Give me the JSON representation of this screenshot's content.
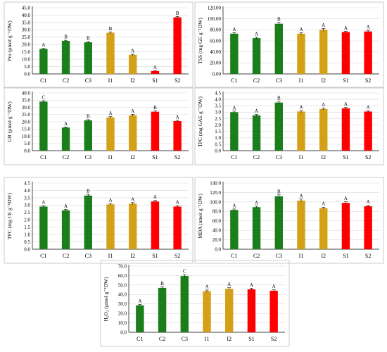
{
  "colors": {
    "C": "#1a7f1a",
    "I": "#d4a017",
    "S": "#ff0000"
  },
  "chart_data": [
    {
      "type": "bar",
      "categories": [
        "C1",
        "C2",
        "C3",
        "I1",
        "I2",
        "S1",
        "S2"
      ],
      "values": [
        17,
        22.5,
        21.5,
        28,
        13,
        2,
        38.5
      ],
      "errors": [
        0.4,
        0.4,
        0.5,
        0.6,
        0.4,
        0.2,
        0.6
      ],
      "letters": [
        "A",
        "B",
        "B",
        "B",
        "A",
        "A",
        "B"
      ],
      "ylabel": "Pro (µmol g⁻¹DW)",
      "ylim": [
        0,
        45
      ],
      "ystep": 5,
      "decimals": 1,
      "grid": true
    },
    {
      "type": "bar",
      "categories": [
        "C1",
        "C2",
        "C3",
        "I1",
        "I2",
        "S1",
        "S2"
      ],
      "values": [
        73,
        65,
        91,
        73,
        80,
        76,
        77
      ],
      "errors": [
        2,
        1.5,
        2.5,
        2,
        2.5,
        1.5,
        2
      ],
      "letters": [
        "A",
        "A",
        "B",
        "A",
        "A",
        "A",
        "A"
      ],
      "ylabel": "TSS (mg GE g⁻¹DW)",
      "ylim": [
        0,
        120
      ],
      "ystep": 20,
      "decimals": 2,
      "grid": true
    },
    {
      "type": "bar",
      "categories": [
        "C1",
        "C2",
        "C3",
        "I1",
        "I2",
        "S1",
        "S2"
      ],
      "values": [
        34,
        16,
        21,
        23,
        24.5,
        27,
        20.5
      ],
      "errors": [
        0.6,
        0.4,
        0.5,
        0.6,
        0.7,
        0.6,
        0.5
      ],
      "letters": [
        "C",
        "A",
        "B",
        "A",
        "A",
        "B",
        "A"
      ],
      "ylabel": "GB (µmol g⁻¹DW)",
      "ylim": [
        0,
        40
      ],
      "ystep": 5,
      "decimals": 1,
      "grid": true
    },
    {
      "type": "bar",
      "categories": [
        "C1",
        "C2",
        "C3",
        "I1",
        "I2",
        "S1",
        "S2"
      ],
      "values": [
        3.0,
        2.75,
        3.75,
        3.05,
        3.25,
        3.3,
        3.05
      ],
      "errors": [
        0.08,
        0.07,
        0.1,
        0.08,
        0.08,
        0.08,
        0.07
      ],
      "letters": [
        "A",
        "A",
        "B",
        "A",
        "A",
        "A",
        "A"
      ],
      "ylabel": "TPC (mg GAE g⁻¹DW)",
      "ylim": [
        0,
        4.5
      ],
      "ystep": 0.5,
      "decimals": 1,
      "grid": true
    },
    {
      "type": "bar",
      "categories": [
        "C1",
        "C2",
        "C3",
        "I1",
        "I2",
        "S1",
        "S2"
      ],
      "values": [
        2.9,
        2.65,
        3.65,
        3.05,
        3.1,
        3.25,
        2.9
      ],
      "errors": [
        0.06,
        0.06,
        0.08,
        0.07,
        0.07,
        0.07,
        0.06
      ],
      "letters": [
        "A",
        "A",
        "B",
        "A",
        "A",
        "A",
        "A"
      ],
      "ylabel": "TFC (mg CE g⁻¹DW)",
      "ylim": [
        0,
        4.5
      ],
      "ystep": 0.5,
      "decimals": 1,
      "grid": true
    },
    {
      "type": "bar",
      "categories": [
        "C1",
        "C2",
        "C3",
        "I1",
        "I2",
        "S1",
        "S2"
      ],
      "values": [
        83,
        89,
        112,
        103,
        87,
        98,
        91
      ],
      "errors": [
        2,
        2,
        3,
        3,
        2,
        2.5,
        2
      ],
      "letters": [
        "A",
        "A",
        "B",
        "A",
        "A",
        "A",
        "A"
      ],
      "ylabel": "MDA (nmol g⁻¹DW)",
      "ylim": [
        0,
        140
      ],
      "ystep": 20,
      "decimals": 1,
      "grid": true
    },
    {
      "type": "bar",
      "categories": [
        "C1",
        "C2",
        "C3",
        "I1",
        "I2",
        "S1",
        "S2"
      ],
      "values": [
        28.5,
        47,
        59.5,
        43.5,
        46,
        45.5,
        44
      ],
      "errors": [
        1,
        1.2,
        1.5,
        1.2,
        1.2,
        1.2,
        1.2
      ],
      "letters": [
        "A",
        "B",
        "C",
        "A",
        "A",
        "A",
        "A"
      ],
      "ylabel": "H₂O₂ (µmol g⁻¹DW)",
      "ylim": [
        0,
        70
      ],
      "ystep": 10,
      "decimals": 1,
      "grid": true
    }
  ]
}
